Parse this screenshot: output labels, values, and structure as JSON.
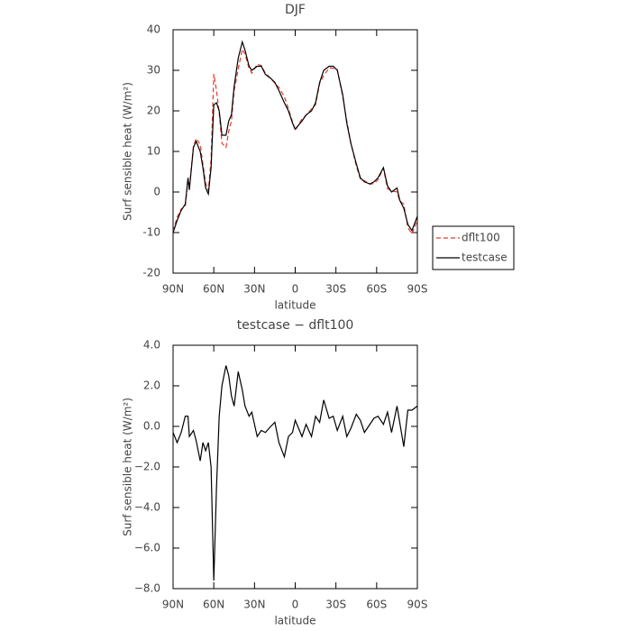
{
  "chart_data": [
    {
      "type": "line",
      "title": "DJF",
      "xlabel": "latitude",
      "ylabel": "Surf sensible heat (W/m²)",
      "x": [
        90,
        87,
        84,
        81,
        79,
        78,
        75,
        73,
        70,
        68,
        66,
        64,
        62,
        60,
        58,
        56,
        54,
        51,
        49,
        47,
        45,
        42,
        39,
        37,
        34,
        32,
        28,
        25,
        22,
        18,
        15,
        12,
        8,
        5,
        2,
        0,
        -5,
        -8,
        -12,
        -15,
        -18,
        -21,
        -25,
        -28,
        -31,
        -35,
        -38,
        -41,
        -45,
        -48,
        -51,
        -55,
        -58,
        -61,
        -65,
        -68,
        -71,
        -75,
        -77,
        -80,
        -83,
        -86,
        -90
      ],
      "series": [
        {
          "name": "dflt100",
          "color": "#e8392b",
          "dash": true,
          "values": [
            -9.7,
            -6.2,
            -4.2,
            -3.5,
            3,
            1,
            11.2,
            13.2,
            11.7,
            6.8,
            2.2,
            0.3,
            8,
            29.1,
            25,
            19.5,
            12,
            11,
            15,
            17.5,
            25,
            30.3,
            35.2,
            34,
            30.5,
            29.3,
            31.5,
            31.2,
            29.3,
            28,
            26.8,
            25.8,
            23.5,
            20.5,
            17.3,
            15.2,
            18,
            18.9,
            20.5,
            21.5,
            26.8,
            28.7,
            30.6,
            30.5,
            30.2,
            23.5,
            17.5,
            12.1,
            6.4,
            3.2,
            2.8,
            1.9,
            2.1,
            3,
            5.9,
            0.8,
            0.3,
            0,
            -2.2,
            -3,
            -8.8,
            -10.3,
            -7
          ]
        },
        {
          "name": "testcase",
          "color": "#000000",
          "dash": false,
          "values": [
            -10,
            -7,
            -4.5,
            -3,
            3.5,
            0.5,
            11,
            12.5,
            10,
            6,
            1,
            -0.5,
            6,
            21.5,
            22,
            20,
            14,
            14,
            17.5,
            19,
            26,
            33,
            37,
            35,
            31,
            30,
            31,
            31,
            29,
            28,
            27,
            25,
            22,
            20,
            17,
            15.5,
            17.5,
            19,
            20,
            22,
            27,
            30,
            31,
            31,
            30,
            24,
            17,
            12,
            7,
            3.5,
            2.5,
            2,
            2.5,
            3.5,
            6,
            1.5,
            0,
            1,
            -2,
            -4,
            -8,
            -9.5,
            -6
          ]
        }
      ],
      "xlim": [
        90,
        -90
      ],
      "xticks": [
        {
          "value": 90,
          "label": "90N"
        },
        {
          "value": 60,
          "label": "60N"
        },
        {
          "value": 30,
          "label": "30N"
        },
        0,
        {
          "value": -30,
          "label": "30S"
        },
        {
          "value": -60,
          "label": "60S"
        },
        {
          "value": -90,
          "label": "90S"
        }
      ],
      "ylim": [
        -20,
        40
      ],
      "yticks": [
        -20,
        -10,
        0,
        10,
        20,
        30,
        40
      ],
      "legend": "right-outside"
    },
    {
      "type": "line",
      "title": "testcase − dflt100",
      "xlabel": "latitude",
      "ylabel": "Surf sensible heat (W/m²)",
      "x": [
        90,
        87,
        84,
        81,
        79,
        78,
        75,
        73,
        70,
        68,
        66,
        64,
        62,
        60,
        58,
        56,
        54,
        51,
        49,
        47,
        45,
        42,
        39,
        37,
        34,
        32,
        28,
        25,
        22,
        18,
        15,
        12,
        8,
        5,
        2,
        0,
        -5,
        -8,
        -12,
        -15,
        -18,
        -21,
        -25,
        -28,
        -31,
        -35,
        -38,
        -41,
        -45,
        -48,
        -51,
        -55,
        -58,
        -61,
        -65,
        -68,
        -71,
        -75,
        -77,
        -80,
        -83,
        -86,
        -90
      ],
      "series": [
        {
          "color": "#000000",
          "dash": false,
          "values": [
            -0.3,
            -0.8,
            -0.3,
            0.5,
            0.5,
            -0.5,
            -0.2,
            -0.7,
            -1.7,
            -0.8,
            -1.2,
            -0.8,
            -2,
            -7.6,
            -3,
            0.5,
            2,
            3,
            2.5,
            1.5,
            1,
            2.7,
            1.8,
            1,
            0.5,
            0.7,
            -0.5,
            -0.2,
            -0.3,
            0,
            0.2,
            -0.8,
            -1.5,
            -0.5,
            -0.3,
            0.3,
            -0.5,
            0.1,
            -0.5,
            0.5,
            0.2,
            1.3,
            0.4,
            0.5,
            -0.2,
            0.5,
            -0.5,
            -0.1,
            0.6,
            0.3,
            -0.3,
            0.1,
            0.4,
            0.5,
            0.1,
            0.7,
            -0.3,
            1,
            0.2,
            -1,
            0.8,
            0.8,
            1
          ]
        }
      ],
      "xlim": [
        90,
        -90
      ],
      "xticks": [
        {
          "value": 90,
          "label": "90N"
        },
        {
          "value": 60,
          "label": "60N"
        },
        {
          "value": 30,
          "label": "30N"
        },
        0,
        {
          "value": -30,
          "label": "30S"
        },
        {
          "value": -60,
          "label": "60S"
        },
        {
          "value": -90,
          "label": "90S"
        }
      ],
      "ylim": [
        -8,
        4
      ],
      "yticks": [
        {
          "value": -8,
          "label": "−8.0"
        },
        {
          "value": -6,
          "label": "−6.0"
        },
        {
          "value": -4,
          "label": "−4.0"
        },
        {
          "value": -2,
          "label": "−2.0"
        },
        {
          "value": 0,
          "label": "0.0"
        },
        {
          "value": 2,
          "label": "2.0"
        },
        {
          "value": 4,
          "label": "4.0"
        }
      ]
    }
  ]
}
